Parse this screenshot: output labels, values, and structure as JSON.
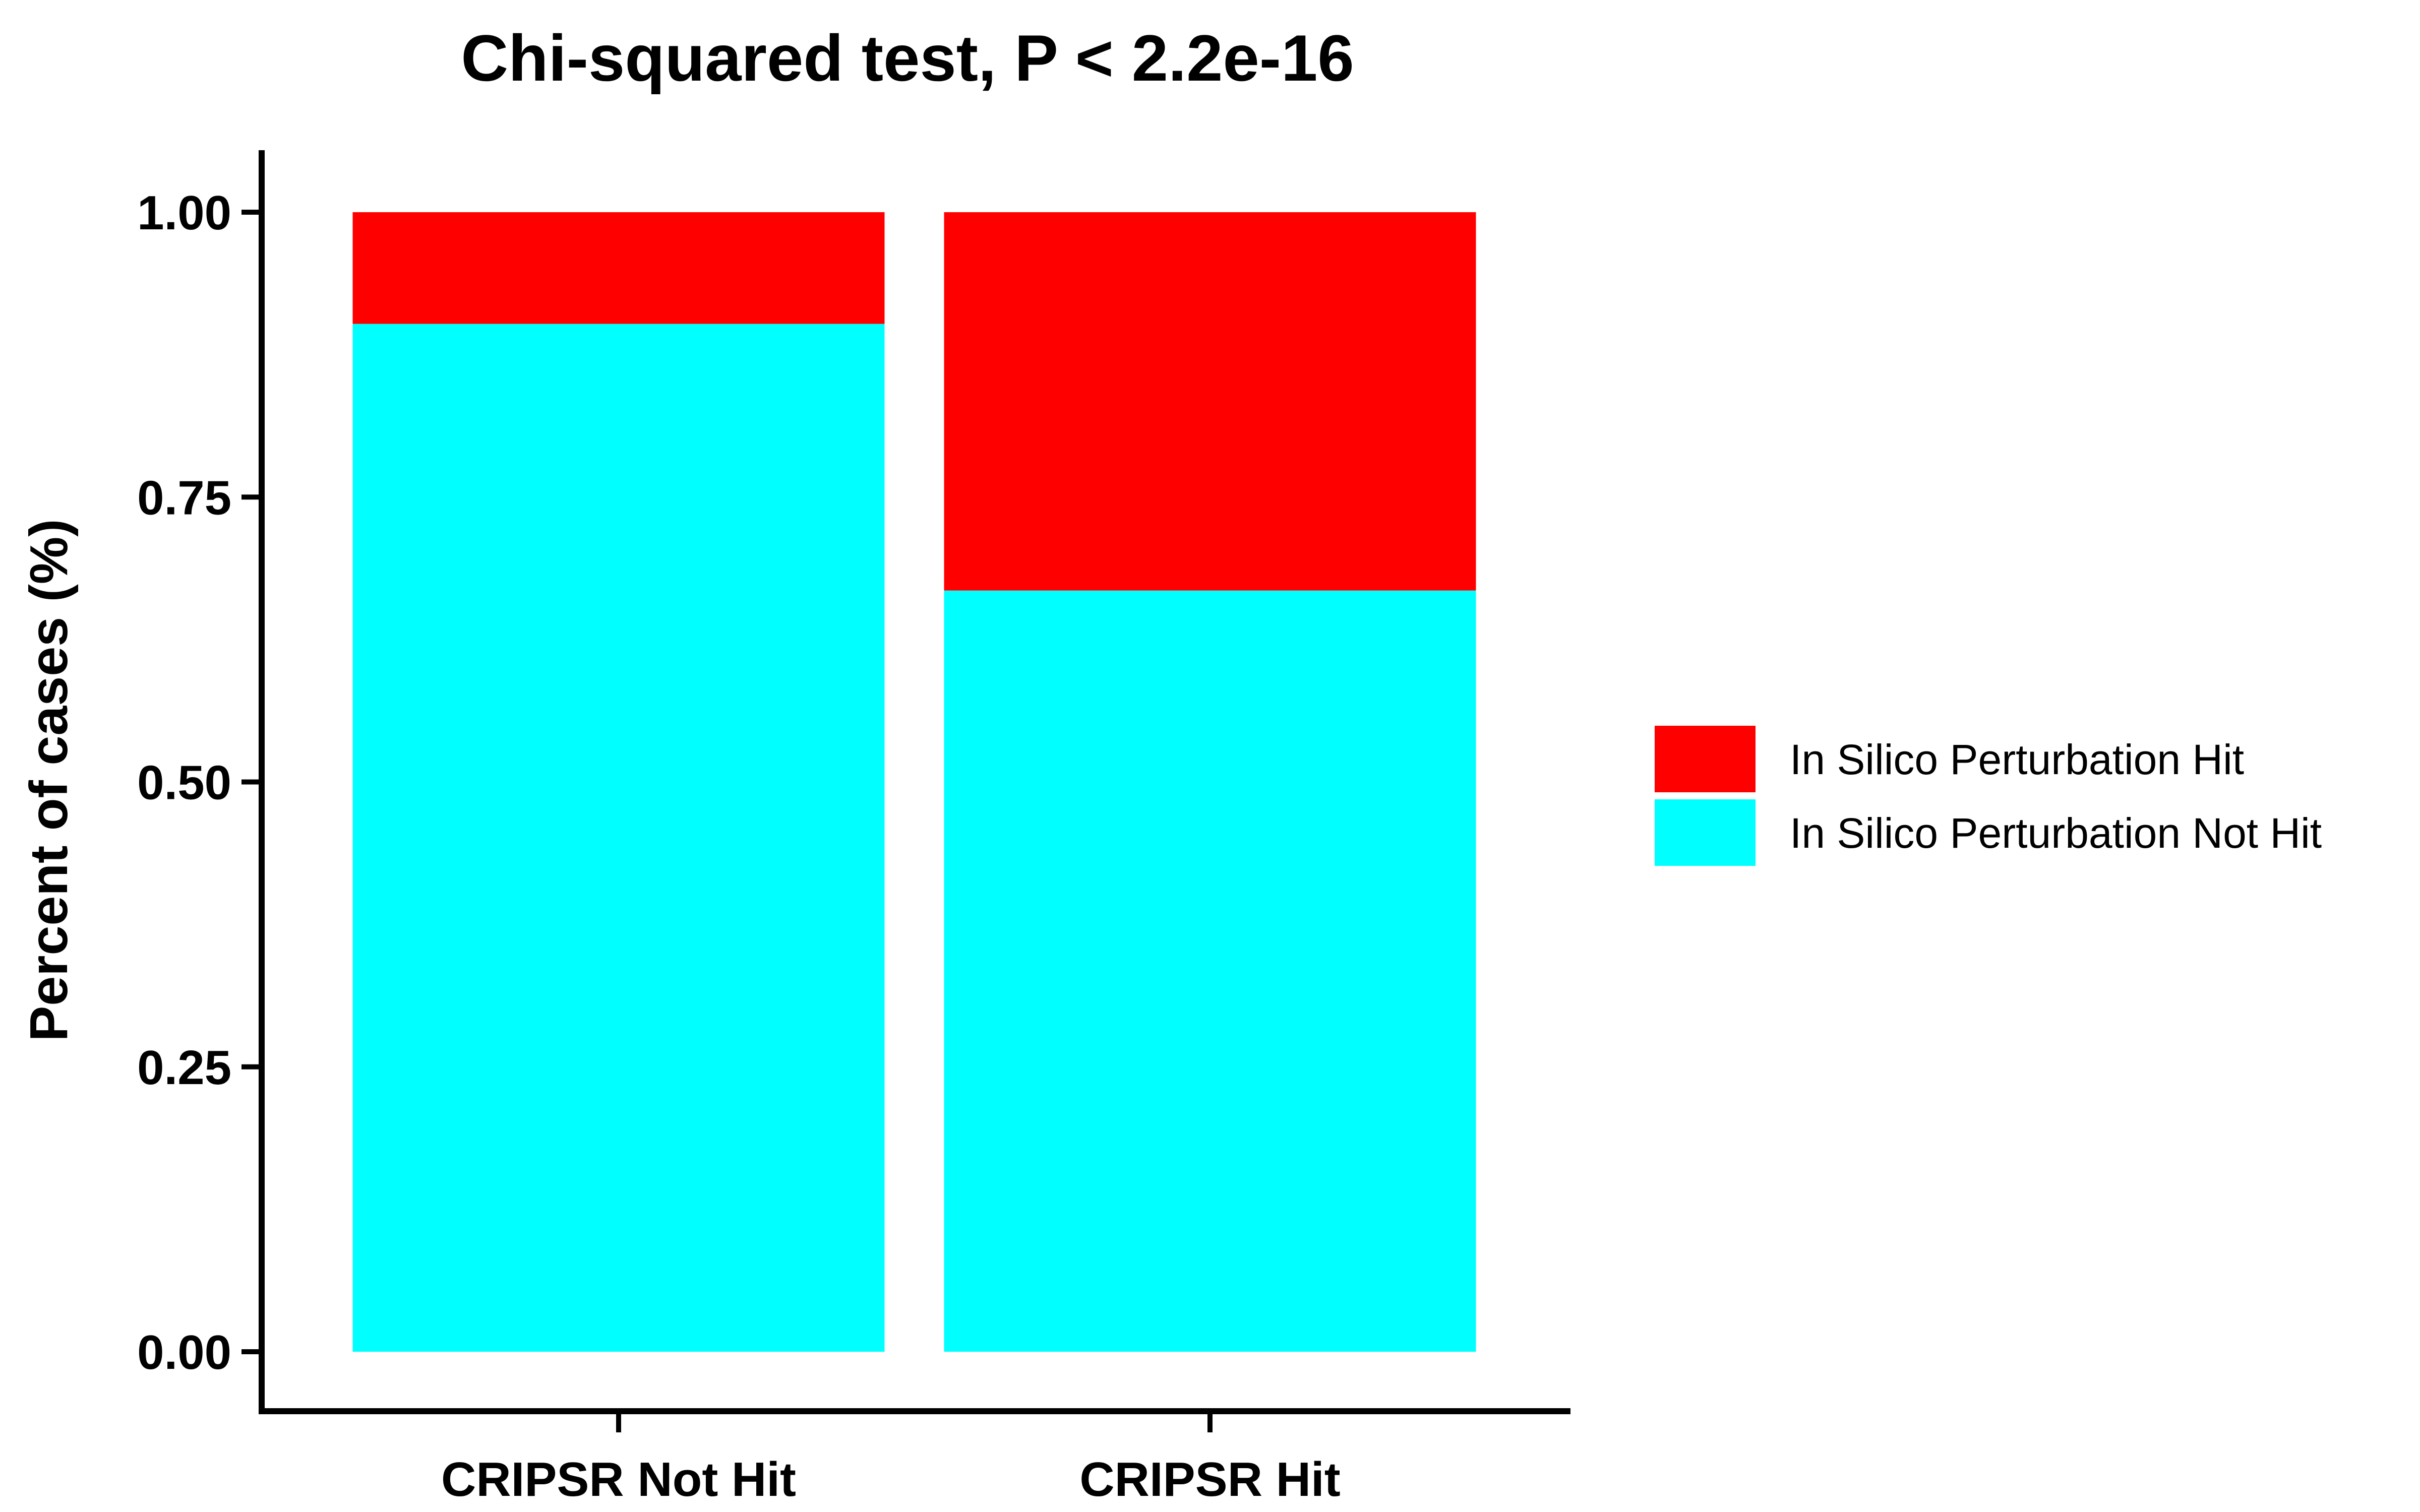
{
  "chart_data": {
    "type": "bar",
    "stacked": true,
    "title": "Chi-squared test, P < 2.2e-16",
    "xlabel": "",
    "ylabel": "Percent of cases (%)",
    "ylim": [
      0,
      1.05
    ],
    "y_ticks": [
      "0.00",
      "0.25",
      "0.50",
      "0.75",
      "1.00"
    ],
    "y_tick_values": [
      0,
      0.25,
      0.5,
      0.75,
      1.0
    ],
    "categories": [
      "CRIPSR Not Hit",
      "CRIPSR Hit"
    ],
    "series": [
      {
        "name": "In Silico Perturbation Not Hit",
        "values": [
          0.902,
          0.668
        ],
        "color": "#00FFFF"
      },
      {
        "name": "In Silico Perturbation Hit",
        "values": [
          0.098,
          0.332
        ],
        "color": "#FF0000"
      }
    ],
    "legend": {
      "position": "right",
      "items": [
        {
          "label": "In Silico Perturbation Hit",
          "color": "#FF0000"
        },
        {
          "label": "In Silico Perturbation Not Hit",
          "color": "#00FFFF"
        }
      ]
    },
    "grid": false
  }
}
